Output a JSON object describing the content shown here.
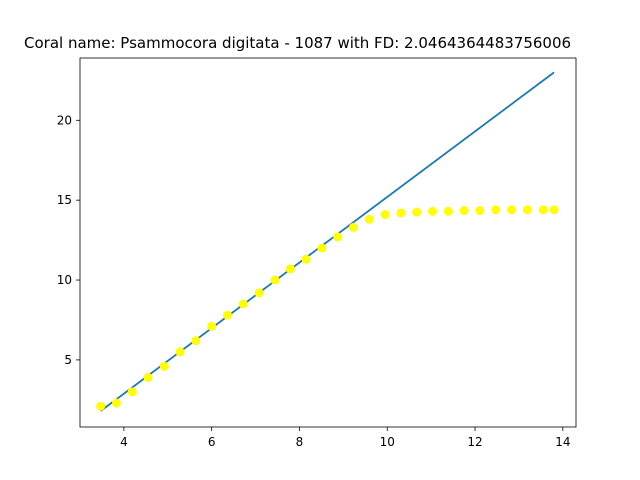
{
  "chart_data": {
    "type": "scatter",
    "title": "Coral name: Psammocora digitata - 1087 with FD: 2.0464364483756006",
    "xlabel": "",
    "ylabel": "",
    "xlim": [
      3.0,
      14.3
    ],
    "ylim": [
      0.8,
      23.9
    ],
    "xticks": [
      4,
      6,
      8,
      10,
      12,
      14
    ],
    "yticks": [
      5,
      10,
      15,
      20
    ],
    "grid": false,
    "colors": {
      "points": "#ffff00",
      "line": "#1f77b4",
      "axes": "#000000"
    },
    "series": [
      {
        "kind": "scatter",
        "points": [
          [
            3.47,
            2.1
          ],
          [
            3.83,
            2.3
          ],
          [
            4.19,
            3.0
          ],
          [
            4.55,
            3.9
          ],
          [
            4.92,
            4.6
          ],
          [
            5.28,
            5.5
          ],
          [
            5.64,
            6.2
          ],
          [
            6.0,
            7.1
          ],
          [
            6.36,
            7.8
          ],
          [
            6.72,
            8.5
          ],
          [
            7.08,
            9.2
          ],
          [
            7.44,
            10.0
          ],
          [
            7.79,
            10.7
          ],
          [
            8.15,
            11.3
          ],
          [
            8.51,
            12.0
          ],
          [
            8.87,
            12.7
          ],
          [
            9.23,
            13.3
          ],
          [
            9.59,
            13.8
          ],
          [
            9.95,
            14.1
          ],
          [
            10.31,
            14.2
          ],
          [
            10.67,
            14.25
          ],
          [
            11.03,
            14.3
          ],
          [
            11.39,
            14.3
          ],
          [
            11.75,
            14.35
          ],
          [
            12.11,
            14.35
          ],
          [
            12.47,
            14.4
          ],
          [
            12.83,
            14.4
          ],
          [
            13.19,
            14.4
          ],
          [
            13.55,
            14.4
          ],
          [
            13.8,
            14.4
          ]
        ]
      },
      {
        "kind": "line",
        "points": [
          [
            3.47,
            1.8
          ],
          [
            13.8,
            23.0
          ]
        ]
      }
    ]
  }
}
